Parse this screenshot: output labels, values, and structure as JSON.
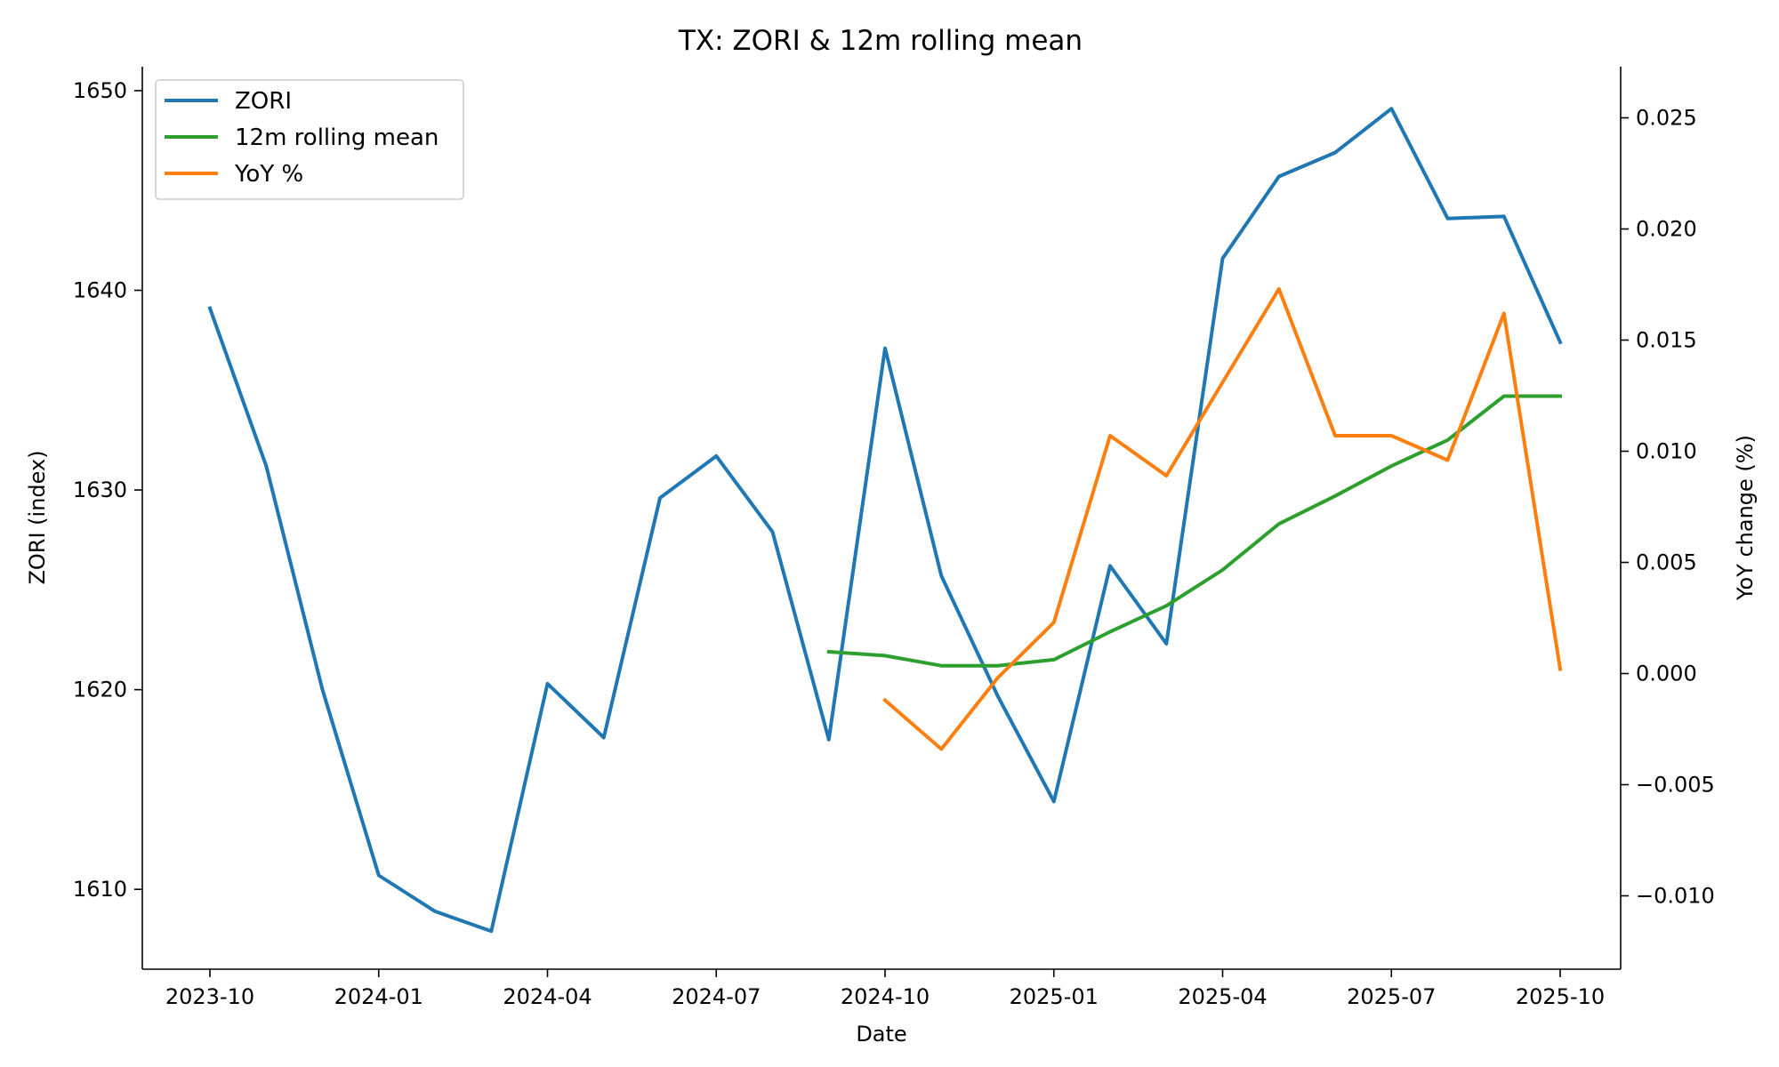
{
  "chart_data": {
    "type": "line",
    "title": "TX: ZORI & 12m rolling mean",
    "xlabel": "Date",
    "ylabel": "ZORI (index)",
    "y2label": "YoY change (%)",
    "x_ticks": [
      "2023-10",
      "2024-01",
      "2024-04",
      "2024-07",
      "2024-10",
      "2025-01",
      "2025-04",
      "2025-07",
      "2025-10"
    ],
    "y_ticks": [
      1610,
      1620,
      1630,
      1640,
      1650
    ],
    "y2_ticks": [
      "−0.010",
      "−0.005",
      "0.000",
      "0.005",
      "0.010",
      "0.015",
      "0.020",
      "0.025"
    ],
    "ylim": [
      1606,
      1651.2
    ],
    "y2lim": [
      -0.0133,
      0.0273
    ],
    "x": [
      "2023-10",
      "2023-11",
      "2023-12",
      "2024-01",
      "2024-02",
      "2024-03",
      "2024-04",
      "2024-05",
      "2024-06",
      "2024-07",
      "2024-08",
      "2024-09",
      "2024-10",
      "2024-11",
      "2024-12",
      "2025-01",
      "2025-02",
      "2025-03",
      "2025-04",
      "2025-05",
      "2025-06",
      "2025-07",
      "2025-08",
      "2025-09",
      "2025-10"
    ],
    "series": [
      {
        "name": "ZORI",
        "axis": "left",
        "color": "#1f77b4",
        "values": [
          1639.1,
          1631.2,
          1620.0,
          1610.7,
          1608.9,
          1607.9,
          1620.3,
          1617.6,
          1629.6,
          1631.7,
          1627.9,
          1617.5,
          1637.1,
          1625.7,
          1619.7,
          1614.4,
          1626.2,
          1622.3,
          1641.6,
          1645.7,
          1646.9,
          1649.1,
          1643.6,
          1643.7,
          1637.4
        ]
      },
      {
        "name": "12m rolling mean",
        "axis": "left",
        "color": "#2ca02c",
        "values": [
          null,
          null,
          null,
          null,
          null,
          null,
          null,
          null,
          null,
          null,
          null,
          1621.9,
          1621.7,
          1621.2,
          1621.2,
          1621.5,
          1622.9,
          1624.2,
          1626.0,
          1628.3,
          1629.7,
          1631.2,
          1632.5,
          1634.7,
          1634.7
        ]
      },
      {
        "name": "YoY %",
        "axis": "right",
        "color": "#ff7f0e",
        "values": [
          null,
          null,
          null,
          null,
          null,
          null,
          null,
          null,
          null,
          null,
          null,
          null,
          -0.0012,
          -0.0034,
          -0.0002,
          0.0023,
          0.0107,
          0.0089,
          0.0131,
          0.0173,
          0.0107,
          0.0107,
          0.0096,
          0.0162,
          0.0002
        ]
      }
    ],
    "legend_position": "top-left",
    "grid": false
  }
}
